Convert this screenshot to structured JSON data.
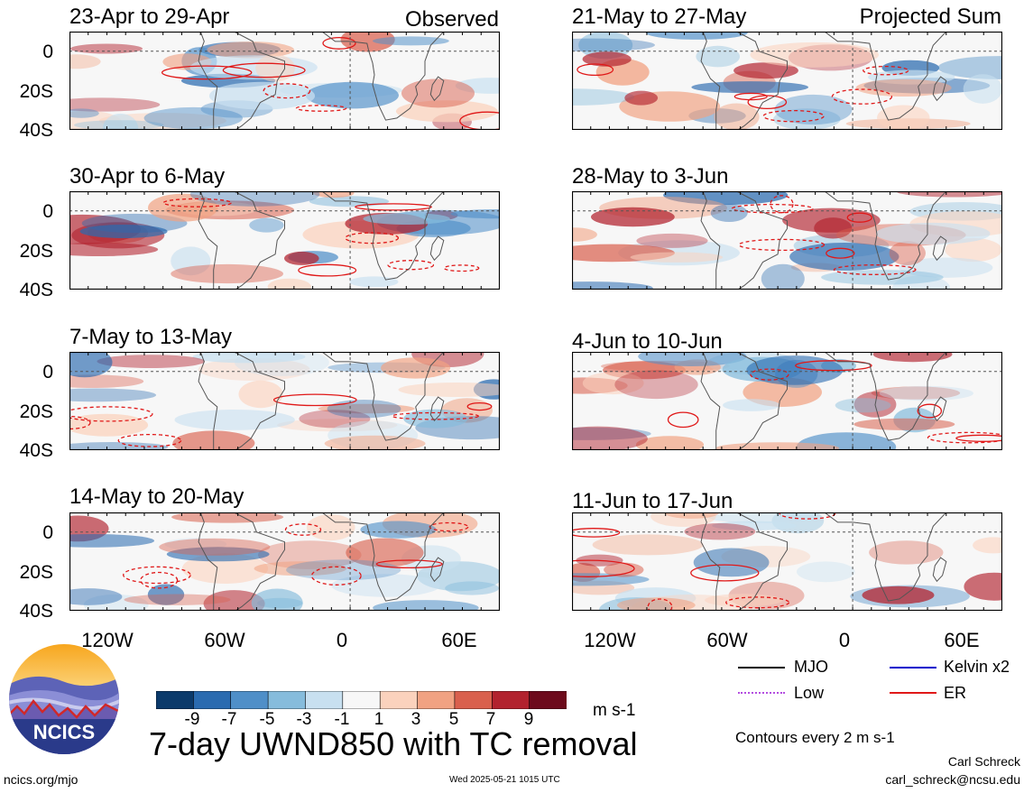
{
  "panels": {
    "observed_header": "Observed",
    "projected_header": "Projected Sum",
    "observed": [
      {
        "title": "23-Apr to 29-Apr"
      },
      {
        "title": "30-Apr to 6-May"
      },
      {
        "title": "7-May to 13-May"
      },
      {
        "title": "14-May to 20-May"
      }
    ],
    "projected": [
      {
        "title": "21-May to 27-May"
      },
      {
        "title": "28-May to 3-Jun"
      },
      {
        "title": "4-Jun to 10-Jun"
      },
      {
        "title": "11-Jun to 17-Jun"
      }
    ],
    "lat_labels": [
      "0",
      "20S",
      "40S"
    ],
    "lon_labels": [
      "120W",
      "60W",
      "0",
      "60E"
    ]
  },
  "colorbar": {
    "ticks": [
      "-9",
      "-7",
      "-5",
      "-3",
      "-1",
      "1",
      "3",
      "5",
      "7",
      "9"
    ],
    "colors": [
      "#0b3a6b",
      "#2a6bb0",
      "#4f8fc8",
      "#86bcdc",
      "#c8e0f0",
      "#f7f7f7",
      "#fbd2bd",
      "#f1a282",
      "#d9604d",
      "#b2222e",
      "#6d0a1c"
    ],
    "units": "m s-1"
  },
  "main_title": "7-day UWND850 with TC removal",
  "legend": {
    "items": [
      {
        "label": "MJO",
        "color": "#000000",
        "style": "solid"
      },
      {
        "label": "Kelvin x2",
        "color": "#0000cc",
        "style": "solid"
      },
      {
        "label": "Low",
        "color": "#b34de0",
        "style": "dotted"
      },
      {
        "label": "ER",
        "color": "#e01818",
        "style": "solid"
      }
    ],
    "contours_note": "Contours every 2 m s-1"
  },
  "logo": {
    "text": "NCICS"
  },
  "footer": {
    "url": "ncics.org/mjo",
    "timestamp": "Wed 2025-05-21 1015 UTC",
    "author": "Carl Schreck",
    "email": "carl_schreck@ncsu.edu"
  }
}
